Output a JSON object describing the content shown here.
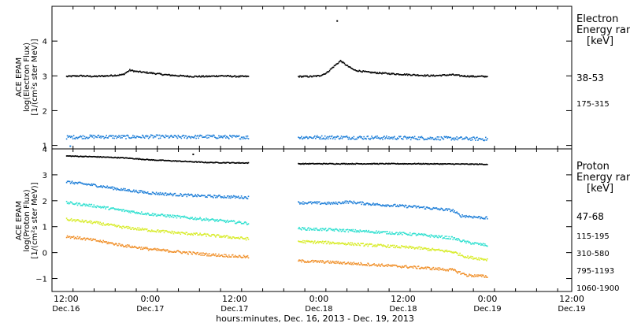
{
  "chart_data": [
    {
      "type": "scatter",
      "panel": "electron",
      "ylabel": [
        "ACE EPAM",
        "log(Electron Flux)",
        "[1/(cm²s ster MeV)]"
      ],
      "ylim": [
        0.9,
        5.0
      ],
      "yticks": [
        1,
        2,
        3,
        4
      ],
      "legend_title": [
        "Electron",
        "Energy ran",
        "[keV]"
      ],
      "series": [
        {
          "name": "38-53",
          "color": "#000000",
          "points": [
            [
              0,
              3.0
            ],
            [
              2,
              3.02
            ],
            [
              4,
              3.0
            ],
            [
              6,
              3.02
            ],
            [
              8,
              3.05
            ],
            [
              9,
              3.18
            ],
            [
              10,
              3.14
            ],
            [
              12,
              3.1
            ],
            [
              14,
              3.05
            ],
            [
              16,
              3.02
            ],
            [
              18,
              3.0
            ],
            [
              20,
              3.0
            ],
            [
              22,
              3.02
            ],
            [
              24,
              3.0
            ],
            [
              26,
              3.0
            ],
            [
              33,
              3.0
            ],
            [
              35,
              3.0
            ],
            [
              36,
              3.02
            ],
            [
              37,
              3.1
            ],
            [
              38,
              3.28
            ],
            [
              39,
              3.45
            ],
            [
              40,
              3.3
            ],
            [
              41,
              3.18
            ],
            [
              43,
              3.12
            ],
            [
              46,
              3.08
            ],
            [
              49,
              3.05
            ],
            [
              52,
              3.02
            ],
            [
              55,
              3.05
            ],
            [
              56,
              3.02
            ],
            [
              58,
              3.0
            ],
            [
              60,
              3.0
            ]
          ]
        },
        {
          "name": "175-315",
          "color": "#1f7fd8",
          "points": [
            [
              0,
              1.25
            ],
            [
              4,
              1.27
            ],
            [
              8,
              1.26
            ],
            [
              12,
              1.27
            ],
            [
              16,
              1.26
            ],
            [
              20,
              1.27
            ],
            [
              26,
              1.25
            ],
            [
              33,
              1.25
            ],
            [
              38,
              1.25
            ],
            [
              44,
              1.24
            ],
            [
              50,
              1.23
            ],
            [
              55,
              1.22
            ],
            [
              60,
              1.2
            ]
          ]
        }
      ]
    },
    {
      "type": "scatter",
      "panel": "proton",
      "ylabel": [
        "ACE EPAM",
        "log(Proton Flux)",
        "[1/(cm²s ster MeV)]"
      ],
      "ylim": [
        -1.5,
        4.0
      ],
      "yticks": [
        -1,
        0,
        1,
        2,
        3,
        4
      ],
      "legend_title": [
        "Proton",
        "Energy ran",
        "[keV]"
      ],
      "series": [
        {
          "name": "47-68",
          "color": "#000000",
          "points": [
            [
              0,
              3.75
            ],
            [
              4,
              3.72
            ],
            [
              8,
              3.68
            ],
            [
              12,
              3.6
            ],
            [
              16,
              3.55
            ],
            [
              20,
              3.5
            ],
            [
              26,
              3.48
            ],
            [
              33,
              3.45
            ],
            [
              40,
              3.45
            ],
            [
              50,
              3.45
            ],
            [
              60,
              3.43
            ]
          ]
        },
        {
          "name": "115-195",
          "color": "#1f7fd8",
          "points": [
            [
              0,
              2.75
            ],
            [
              4,
              2.62
            ],
            [
              8,
              2.45
            ],
            [
              12,
              2.32
            ],
            [
              16,
              2.25
            ],
            [
              20,
              2.2
            ],
            [
              26,
              2.15
            ],
            [
              33,
              1.95
            ],
            [
              38,
              1.92
            ],
            [
              40,
              1.98
            ],
            [
              44,
              1.88
            ],
            [
              50,
              1.78
            ],
            [
              55,
              1.65
            ],
            [
              56,
              1.45
            ],
            [
              60,
              1.35
            ]
          ]
        },
        {
          "name": "310-580",
          "color": "#30e0d0",
          "points": [
            [
              0,
              1.95
            ],
            [
              4,
              1.82
            ],
            [
              8,
              1.65
            ],
            [
              12,
              1.5
            ],
            [
              16,
              1.4
            ],
            [
              20,
              1.3
            ],
            [
              26,
              1.15
            ],
            [
              33,
              0.95
            ],
            [
              38,
              0.9
            ],
            [
              44,
              0.82
            ],
            [
              50,
              0.72
            ],
            [
              55,
              0.58
            ],
            [
              57,
              0.42
            ],
            [
              60,
              0.3
            ]
          ]
        },
        {
          "name": "795-1193",
          "color": "#d8ec28",
          "points": [
            [
              0,
              1.3
            ],
            [
              4,
              1.18
            ],
            [
              8,
              1.0
            ],
            [
              12,
              0.88
            ],
            [
              16,
              0.78
            ],
            [
              20,
              0.7
            ],
            [
              26,
              0.55
            ],
            [
              33,
              0.45
            ],
            [
              38,
              0.4
            ],
            [
              44,
              0.3
            ],
            [
              50,
              0.2
            ],
            [
              55,
              0.05
            ],
            [
              57,
              -0.15
            ],
            [
              60,
              -0.25
            ]
          ]
        },
        {
          "name": "1060-1900",
          "color": "#f0902a",
          "points": [
            [
              0,
              0.65
            ],
            [
              4,
              0.5
            ],
            [
              8,
              0.3
            ],
            [
              12,
              0.15
            ],
            [
              16,
              0.05
            ],
            [
              20,
              -0.05
            ],
            [
              26,
              -0.15
            ],
            [
              33,
              -0.3
            ],
            [
              38,
              -0.35
            ],
            [
              44,
              -0.45
            ],
            [
              50,
              -0.55
            ],
            [
              55,
              -0.65
            ],
            [
              57,
              -0.85
            ],
            [
              60,
              -0.9
            ]
          ]
        }
      ]
    }
  ],
  "x_axis": {
    "xlim": [
      -2,
      72
    ],
    "gap_hours": [
      26,
      33
    ],
    "ticks": [
      {
        "hour": 0,
        "time": "12:00",
        "date": "Dec.16"
      },
      {
        "hour": 12,
        "time": "0:00",
        "date": "Dec.17"
      },
      {
        "hour": 24,
        "time": "12:00",
        "date": "Dec.17"
      },
      {
        "hour": 36,
        "time": "0:00",
        "date": "Dec.18"
      },
      {
        "hour": 48,
        "time": "12:00",
        "date": "Dec.18"
      },
      {
        "hour": 60,
        "time": "0:00",
        "date": "Dec.19"
      },
      {
        "hour": 72,
        "time": "12:00",
        "date": "Dec.19"
      }
    ],
    "label": "hours:minutes, Dec. 16, 2013 - Dec. 19, 2013"
  },
  "outliers": [
    {
      "panel": "electron",
      "x": 38.5,
      "y": 4.6
    },
    {
      "panel": "electron",
      "x": 0.5,
      "y": 1.0
    },
    {
      "panel": "proton",
      "x": 18,
      "y": 3.82
    }
  ]
}
